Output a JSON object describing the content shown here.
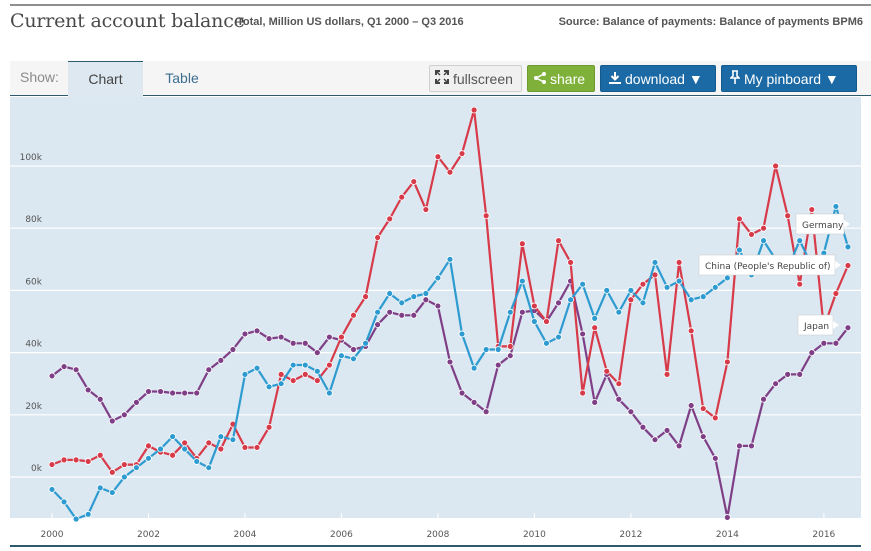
{
  "header": {
    "title": "Current account balance",
    "subtitle": "Total, Million US dollars, Q1 2000 – Q3 2016",
    "source": "Source: Balance of payments: Balance of payments BPM6"
  },
  "toolbar": {
    "show_label": "Show:",
    "tabs": [
      {
        "label": "Chart",
        "active": true
      },
      {
        "label": "Table",
        "active": false
      }
    ],
    "fullscreen_label": "fullscreen",
    "share_label": "share",
    "download_label": "download ▼",
    "pinboard_label": "My pinboard ▼",
    "icons": {
      "fullscreen": "expand-arrows-icon",
      "share": "share-icon",
      "download": "download-icon",
      "pinboard": "pin-icon"
    }
  },
  "colors": {
    "china": "#d73a49",
    "germany": "#2e9bd0",
    "japan": "#7e3f86",
    "plot_bg": "#dce8f1",
    "share_button": "#7fb13a",
    "primary_button": "#1b6aa5"
  },
  "chart_data": {
    "type": "line",
    "title": "Current account balance",
    "subtitle": "Total, Million US dollars, Q1 2000 – Q3 2016",
    "xlabel": "",
    "ylabel": "",
    "x_start": "Q1 2000",
    "x_end": "Q3 2016",
    "x_ticks": [
      "2000",
      "2002",
      "2004",
      "2006",
      "2008",
      "2010",
      "2012",
      "2014",
      "2016"
    ],
    "y_ticks": [
      "0k",
      "20k",
      "40k",
      "60k",
      "80k",
      "100k"
    ],
    "y_tick_values": [
      0,
      20000,
      40000,
      60000,
      80000,
      100000
    ],
    "ylim": [
      -16000,
      118000
    ],
    "grid": true,
    "legend": "inline-labels-right",
    "series": [
      {
        "name": "Germany",
        "key": "germany",
        "values": [
          -4000,
          -8000,
          -13500,
          -12000,
          -3500,
          -5000,
          0,
          3000,
          6000,
          9000,
          13000,
          9000,
          5000,
          3000,
          13000,
          12000,
          33000,
          35000,
          29000,
          30000,
          36000,
          36000,
          34000,
          27000,
          39000,
          38000,
          43000,
          53000,
          59000,
          56000,
          58000,
          59000,
          64000,
          70000,
          46000,
          35000,
          41000,
          41000,
          53000,
          63000,
          50000,
          43000,
          45000,
          57000,
          62000,
          51000,
          60000,
          53000,
          60000,
          56000,
          69000,
          61000,
          63000,
          57000,
          58000,
          61000,
          64000,
          73000,
          65000,
          76000,
          70000,
          67000,
          76000,
          68000,
          72000,
          87000,
          74000
        ]
      },
      {
        "name": "China (People's Republic of)",
        "key": "china",
        "values": [
          4000,
          5500,
          5500,
          5000,
          7000,
          1500,
          4000,
          4000,
          10000,
          8000,
          7000,
          11000,
          6000,
          11000,
          9000,
          17000,
          9500,
          9500,
          16000,
          33000,
          31000,
          33000,
          31000,
          36000,
          45000,
          52000,
          58000,
          77000,
          83000,
          90000,
          95000,
          86000,
          103000,
          98000,
          104000,
          118000,
          84000,
          42000,
          42000,
          75000,
          55000,
          50000,
          76000,
          69000,
          27000,
          48000,
          34000,
          30000,
          57000,
          62000,
          65000,
          33000,
          69000,
          47000,
          22000,
          19000,
          37000,
          83000,
          78000,
          80000,
          100000,
          84000,
          62000,
          86000,
          48000,
          59000,
          68000
        ]
      },
      {
        "name": "Japan",
        "key": "japan",
        "values": [
          32500,
          35500,
          34500,
          28000,
          25000,
          18000,
          20000,
          24000,
          27500,
          27500,
          27000,
          27000,
          27000,
          34500,
          37500,
          41000,
          46000,
          47000,
          44500,
          45000,
          43000,
          43000,
          40000,
          45000,
          44000,
          41000,
          42000,
          49000,
          53000,
          52000,
          52000,
          57000,
          55000,
          37000,
          27000,
          24000,
          21000,
          36000,
          39000,
          53000,
          53500,
          50000,
          56000,
          63000,
          46000,
          24000,
          33000,
          25000,
          21000,
          16000,
          12000,
          15000,
          10000,
          23000,
          13000,
          6000,
          -13000,
          10000,
          10000,
          25000,
          30000,
          33000,
          33000,
          40000,
          43000,
          43000,
          48000
        ]
      }
    ],
    "annotations": [
      {
        "text": "Germany",
        "series": "germany"
      },
      {
        "text": "China (People's Republic of)",
        "series": "china"
      },
      {
        "text": "Japan",
        "series": "japan"
      }
    ]
  }
}
